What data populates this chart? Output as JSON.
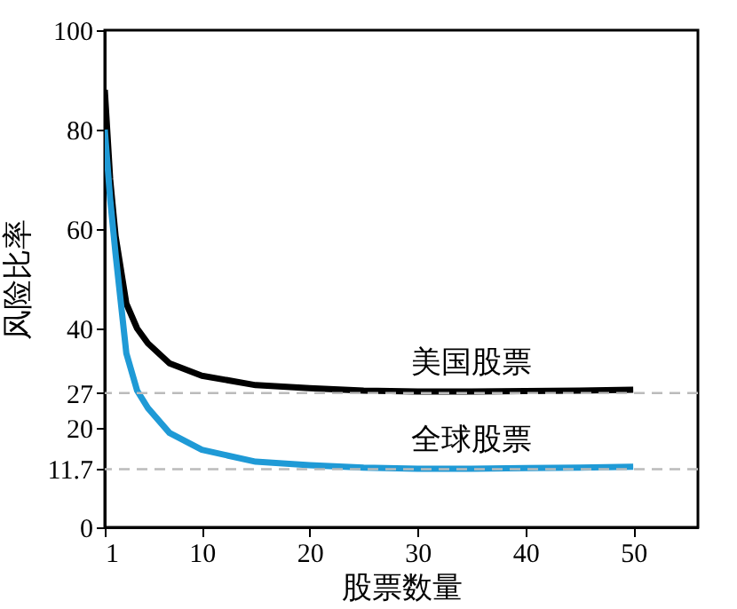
{
  "chart_data": {
    "type": "line",
    "xlabel": "股票数量",
    "ylabel": "风险比率",
    "x": [
      1,
      1.5,
      2,
      3,
      4,
      5,
      7,
      10,
      15,
      20,
      25,
      30,
      35,
      40,
      45,
      50
    ],
    "series": [
      {
        "name": "美国股票",
        "color": "#000000",
        "values": [
          88,
          70,
          58.6,
          45,
          40,
          37,
          33,
          30.5,
          28.6,
          28,
          27.5,
          27.3,
          27.3,
          27.4,
          27.5,
          27.7
        ]
      },
      {
        "name": "全球股票",
        "color": "#1f9ad6",
        "values": [
          80,
          66,
          55,
          35,
          27.5,
          24,
          19,
          15.6,
          13.2,
          12.5,
          12,
          11.8,
          11.8,
          11.9,
          12,
          12.2
        ]
      }
    ],
    "xlim": [
      1,
      56
    ],
    "xticks": [
      1,
      10,
      20,
      30,
      40,
      50
    ],
    "ylim": [
      0,
      100
    ],
    "yticks": [
      0,
      11.7,
      20,
      27,
      40,
      60,
      80,
      100
    ],
    "ref_lines": [
      {
        "axis": "y",
        "value": 27,
        "color": "#bbbbbb",
        "line_style": "dashed"
      },
      {
        "axis": "y",
        "value": 11.7,
        "color": "#bbbbbb",
        "line_style": "dashed"
      }
    ],
    "grid": false,
    "marker": "none",
    "line_style": "solid"
  }
}
